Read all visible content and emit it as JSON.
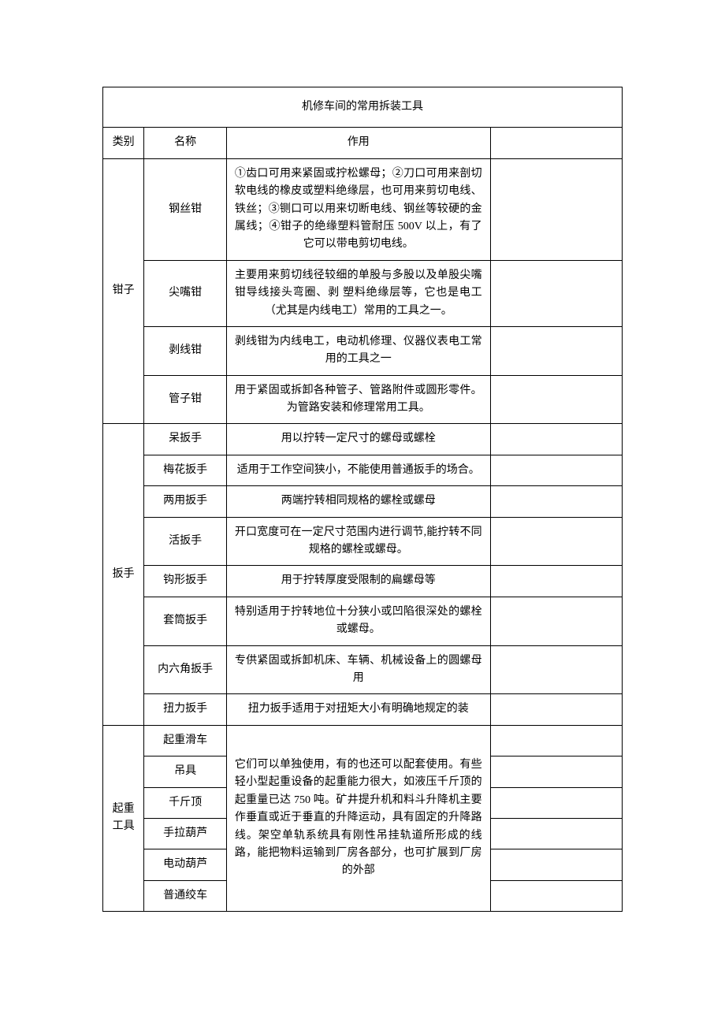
{
  "table": {
    "title": "机修车间的常用拆装工具",
    "headers": {
      "category": "类别",
      "name": "名称",
      "function": "作用"
    },
    "categories": [
      {
        "label": "钳子",
        "items": [
          {
            "name": "钢丝钳",
            "desc": "①齿口可用来紧固或拧松螺母；②刀口可用来剖切软电线的橡皮或塑料绝缘层，也可用来剪切电线、铁丝；③铡口可以用来切断电线、钢丝等较硬的金 属线；④钳子的绝缘塑料管耐压 500V 以上，有了它可以带电剪切电线。"
          },
          {
            "name": "尖嘴钳",
            "desc": "主要用来剪切线径较细的单股与多股以及单股尖嘴钳导线接头弯圈、剥 塑料绝缘层等，它也是电工（尤其是内线电工）常用的工具之一。"
          },
          {
            "name": "剥线钳",
            "desc": "剥线钳为内线电工，电动机修理、仪器仪表电工常用的工具之一"
          },
          {
            "name": "管子钳",
            "desc": "用于紧固或拆卸各种管子、管路附件或圆形零件。为管路安装和修理常用工具。"
          }
        ]
      },
      {
        "label": "扳手",
        "items": [
          {
            "name": "呆扳手",
            "desc": "用以拧转一定尺寸的螺母或螺栓"
          },
          {
            "name": "梅花扳手",
            "desc": "适用于工作空间狭小，不能使用普通扳手的场合。"
          },
          {
            "name": "两用扳手",
            "desc": "两端拧转相同规格的螺栓或螺母"
          },
          {
            "name": "活扳手",
            "desc": "开口宽度可在一定尺寸范围内进行调节,能拧转不同规格的螺栓或螺母。"
          },
          {
            "name": "钩形扳手",
            "desc": "用于拧转厚度受限制的扁螺母等"
          },
          {
            "name": "套筒扳手",
            "desc": "特别适用于拧转地位十分狭小或凹陷很深处的螺栓或螺母。"
          },
          {
            "name": "内六角扳手",
            "desc": "专供紧固或拆卸机床、车辆、机械设备上的圆螺母用"
          },
          {
            "name": "扭力扳手",
            "desc": "扭力扳手适用于对扭矩大小有明确地规定的装"
          }
        ]
      },
      {
        "label": "起重工具",
        "shared_desc": "它们可以单独使用，有的也还可以配套使用。有些轻小型起重设备的起重能力很大，如液压千斤顶的起重量已达 750 吨。矿井提升机和料斗升降机主要作垂直或近于垂直的升降运动，具有固定的升降路线。架空单轨系统具有刚性吊挂轨道所形成的线路，能把物料运输到厂房各部分，也可扩展到厂房的外部",
        "items": [
          {
            "name": "起重滑车"
          },
          {
            "name": "吊具"
          },
          {
            "name": "千斤顶"
          },
          {
            "name": "手拉葫芦"
          },
          {
            "name": "电动葫芦"
          },
          {
            "name": "普通绞车"
          }
        ]
      }
    ]
  },
  "style": {
    "font_family": "SimSun",
    "font_size": 14,
    "line_height": 1.6,
    "border_color": "#000000",
    "background_color": "#ffffff",
    "text_color": "#000000",
    "column_widths": {
      "category": 50,
      "name": 100,
      "desc": 320,
      "img": 160
    }
  }
}
